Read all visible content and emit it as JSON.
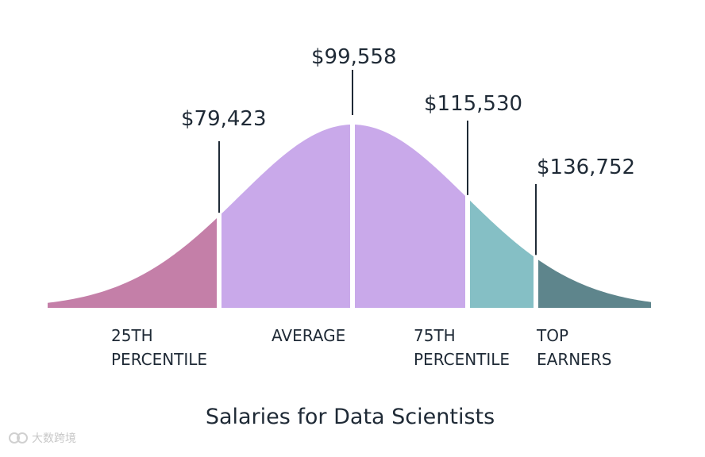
{
  "chart_data": {
    "type": "area",
    "title": "Salaries for Data Scientists",
    "xlabel": "",
    "ylabel": "",
    "grid": false,
    "distribution": "normal",
    "mean": 99558,
    "markers": [
      {
        "value": 79423,
        "label": "$79,423"
      },
      {
        "value": 99558,
        "label": "$99,558"
      },
      {
        "value": 115530,
        "label": "$115,530"
      },
      {
        "value": 136752,
        "label": "$136,752"
      }
    ],
    "segments": [
      {
        "label_lines": [
          "25TH",
          "PERCENTILE"
        ],
        "color": "#c47fa8"
      },
      {
        "label_lines": [
          "AVERAGE"
        ],
        "color": "#c9a9ea"
      },
      {
        "label_lines": [
          "75TH",
          "PERCENTILE"
        ],
        "color": "#85bfc5"
      },
      {
        "label_lines": [
          "TOP",
          "EARNERS"
        ],
        "color": "#5e858c"
      }
    ]
  },
  "watermark": {
    "text": "大数跨境"
  }
}
